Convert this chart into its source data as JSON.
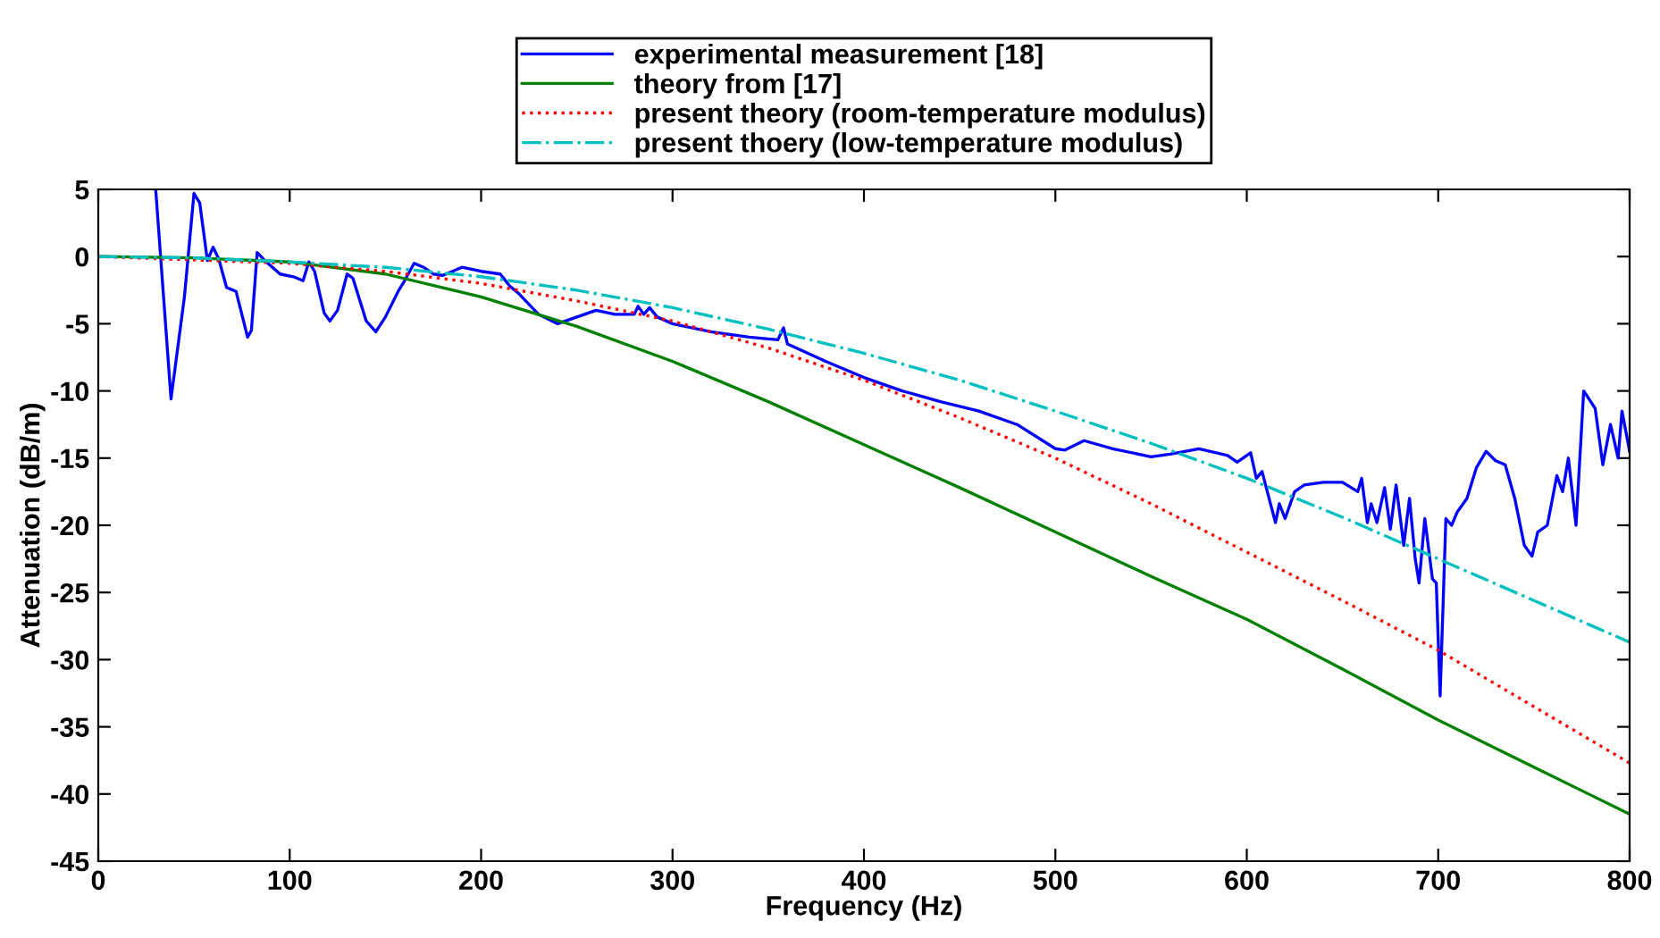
{
  "chart_data": {
    "type": "line",
    "xlabel": "Frequency (Hz)",
    "ylabel": "Attenuation (dB/m)",
    "xlim": [
      0,
      800
    ],
    "xticks": [
      0,
      100,
      200,
      300,
      400,
      500,
      600,
      700,
      800
    ],
    "ylim": [
      -45,
      5
    ],
    "yticks": [
      -45,
      -40,
      -35,
      -30,
      -25,
      -20,
      -15,
      -10,
      -5,
      0,
      5
    ],
    "grid": false,
    "legend": "top",
    "marker": "none",
    "series": [
      {
        "name": "experimental measurement [18]",
        "color": "#0000ff",
        "line_style": "solid",
        "x": [
          30,
          38,
          45,
          50,
          53,
          57,
          60,
          63,
          67,
          72,
          78,
          80,
          83,
          87,
          95,
          102,
          107,
          110,
          113,
          118,
          121,
          125,
          130,
          133,
          140,
          145,
          150,
          157,
          160,
          165,
          170,
          175,
          180,
          190,
          200,
          210,
          215,
          220,
          230,
          240,
          250,
          260,
          270,
          280,
          282,
          285,
          288,
          292,
          300,
          320,
          340,
          355,
          358,
          360,
          380,
          400,
          420,
          440,
          460,
          480,
          500,
          505,
          515,
          530,
          550,
          560,
          575,
          590,
          595,
          602,
          605,
          608,
          612,
          615,
          617,
          620,
          625,
          630,
          640,
          650,
          658,
          660,
          663,
          665,
          668,
          672,
          675,
          678,
          682,
          685,
          688,
          690,
          693,
          697,
          699,
          701,
          704,
          707,
          710,
          715,
          720,
          725,
          730,
          735,
          740,
          745,
          749,
          752,
          757,
          762,
          765,
          768,
          772,
          776,
          782,
          786,
          790,
          794,
          796,
          800
        ],
        "values": [
          5,
          -10.6,
          -3,
          4.7,
          4,
          -0.3,
          0.7,
          -0.2,
          -2.3,
          -2.6,
          -6,
          -5.5,
          0.3,
          -0.3,
          -1.3,
          -1.5,
          -1.8,
          -0.4,
          -1.1,
          -4.2,
          -4.8,
          -4,
          -1.3,
          -1.6,
          -4.8,
          -5.6,
          -4.5,
          -2.5,
          -1.8,
          -0.5,
          -0.8,
          -1.3,
          -1.4,
          -0.8,
          -1.1,
          -1.3,
          -2.2,
          -2.8,
          -4.3,
          -5,
          -4.5,
          -4,
          -4.3,
          -4.3,
          -3.7,
          -4.3,
          -3.8,
          -4.5,
          -5,
          -5.6,
          -6,
          -6.2,
          -5.3,
          -6.5,
          -7.8,
          -9,
          -10,
          -10.8,
          -11.5,
          -12.5,
          -14.3,
          -14.4,
          -13.7,
          -14.3,
          -14.9,
          -14.7,
          -14.3,
          -14.8,
          -15.3,
          -14.6,
          -16.5,
          -16,
          -18.2,
          -19.8,
          -18.4,
          -19.5,
          -17.5,
          -17,
          -16.8,
          -16.8,
          -17.5,
          -16.5,
          -19.8,
          -18.4,
          -19.8,
          -17.2,
          -20.3,
          -17,
          -21.5,
          -18,
          -22.5,
          -24.3,
          -19.5,
          -24,
          -24.3,
          -32.7,
          -19.5,
          -20,
          -19,
          -18,
          -15.7,
          -14.5,
          -15.2,
          -15.5,
          -18,
          -21.5,
          -22.3,
          -20.5,
          -20,
          -16.3,
          -17.5,
          -15,
          -20,
          -10,
          -11.3,
          -15.5,
          -12.5,
          -15,
          -11.5,
          -14.5
        ]
      },
      {
        "name": "theory from [17]",
        "color": "#008000",
        "line_style": "solid",
        "x": [
          0,
          50,
          100,
          150,
          200,
          250,
          300,
          350,
          400,
          450,
          500,
          550,
          600,
          650,
          700,
          750,
          800
        ],
        "values": [
          0,
          -0.1,
          -0.4,
          -1.3,
          -3,
          -5.2,
          -7.8,
          -10.8,
          -14,
          -17.2,
          -20.5,
          -23.8,
          -27,
          -30.7,
          -34.5,
          -38,
          -41.5
        ]
      },
      {
        "name": "present theory (room-temperature modulus)",
        "color": "#ff0000",
        "line_style": "dotted",
        "x": [
          0,
          100,
          150,
          200,
          250,
          300,
          350,
          400,
          450,
          500,
          550,
          600,
          650,
          700,
          750,
          800
        ],
        "values": [
          0,
          -0.5,
          -1.1,
          -2,
          -3.3,
          -4.8,
          -6.8,
          -9.2,
          -12,
          -15,
          -18.4,
          -22,
          -25.6,
          -29.3,
          -33.5,
          -37.7
        ]
      },
      {
        "name": "present thoery (low-temperature modulus)",
        "color": "#00bfbf",
        "line_style": "dashdot",
        "x": [
          0,
          50,
          100,
          150,
          200,
          250,
          300,
          350,
          400,
          450,
          500,
          550,
          600,
          650,
          700,
          750,
          800
        ],
        "values": [
          0,
          -0.1,
          -0.4,
          -0.8,
          -1.5,
          -2.5,
          -3.8,
          -5.4,
          -7.2,
          -9.2,
          -11.5,
          -13.9,
          -16.5,
          -19.4,
          -22.5,
          -25.6,
          -28.7
        ]
      }
    ]
  }
}
